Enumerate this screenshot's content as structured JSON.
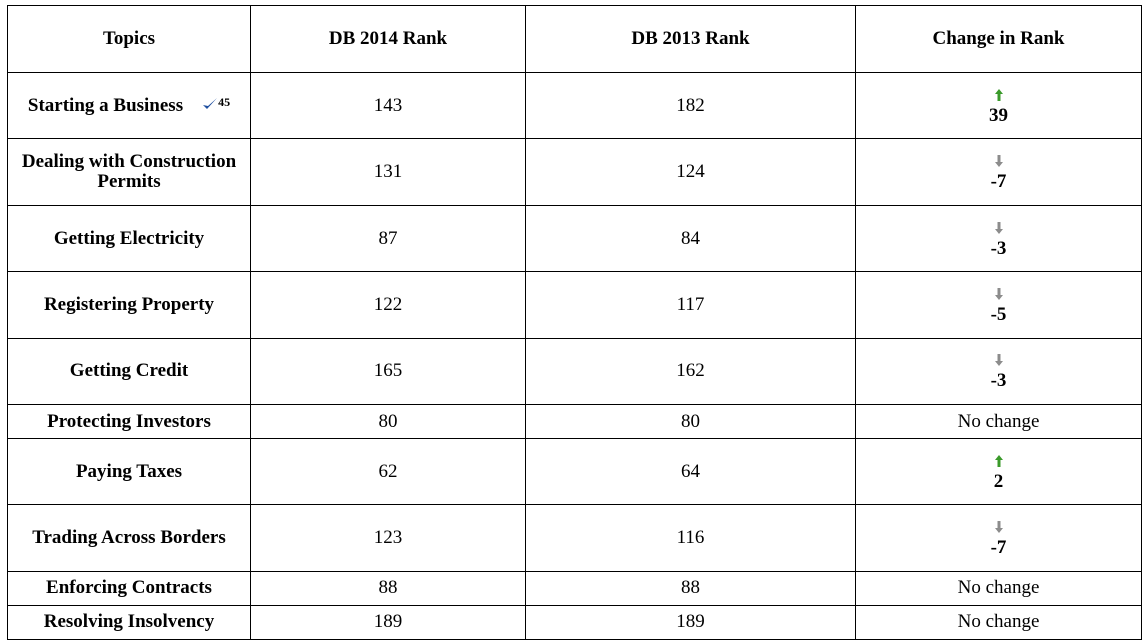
{
  "table": {
    "header": [
      "Topics",
      "DB 2014 Rank",
      "DB 2013 Rank",
      "Change in Rank"
    ],
    "rows": [
      {
        "topic": "Starting a Business",
        "note": "45",
        "db2014": 143,
        "db2013": 182,
        "change": 39
      },
      {
        "topic": "Dealing with Construction Permits",
        "db2014": 131,
        "db2013": 124,
        "change": -7
      },
      {
        "topic": "Getting Electricity",
        "db2014": 87,
        "db2013": 84,
        "change": -3
      },
      {
        "topic": "Registering Property",
        "db2014": 122,
        "db2013": 117,
        "change": -5
      },
      {
        "topic": "Getting Credit",
        "db2014": 165,
        "db2013": 162,
        "change": -3
      },
      {
        "topic": "Protecting Investors",
        "db2014": 80,
        "db2013": 80,
        "change": "No change"
      },
      {
        "topic": "Paying Taxes",
        "db2014": 62,
        "db2013": 64,
        "change": 2
      },
      {
        "topic": "Trading Across Borders",
        "db2014": 123,
        "db2013": 116,
        "change": -7
      },
      {
        "topic": "Enforcing Contracts",
        "db2014": 88,
        "db2013": 88,
        "change": "No change"
      },
      {
        "topic": "Resolving Insolvency",
        "db2014": 189,
        "db2013": 189,
        "change": "No change"
      }
    ]
  }
}
